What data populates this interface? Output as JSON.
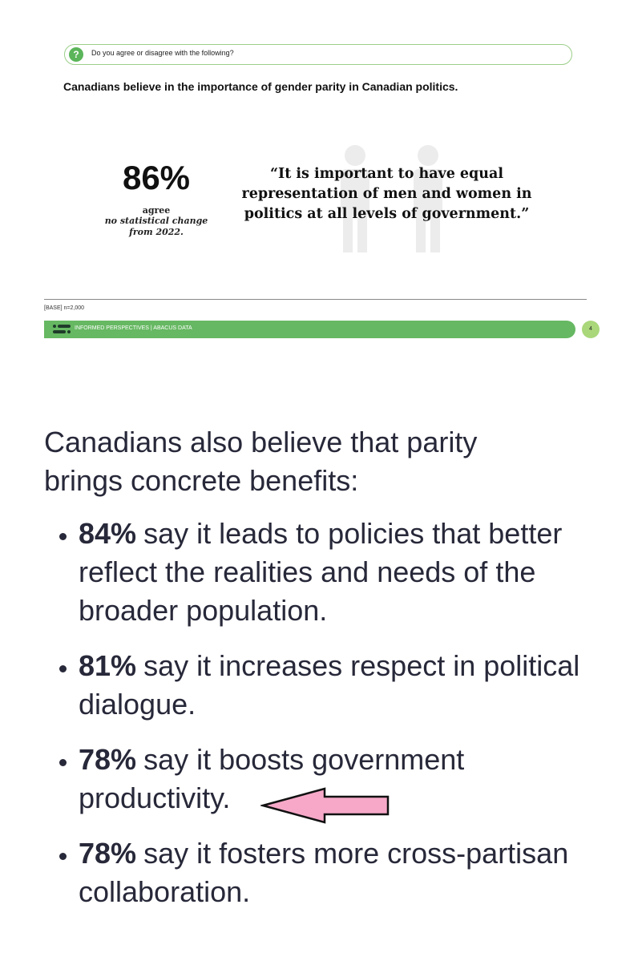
{
  "slide": {
    "question": "Do you agree or disagree with the following?",
    "title": "Canadians believe in the importance of gender parity in Canadian politics.",
    "stat": "86%",
    "stat_label": "agree",
    "stat_note": "no statistical change from 2022.",
    "quote": "“It is important to have equal representation of men and women in politics at all levels of government.”",
    "base": "[BASE] n=2,000",
    "footer": "INFORMED PERSPECTIVES | ABACUS DATA",
    "page": "4"
  },
  "post": {
    "intro": "Canadians also believe that parity brings concrete benefits:",
    "bullets": [
      {
        "bold": "84%",
        "text": "say it leads to policies that better reflect the realities and needs of the broader population."
      },
      {
        "bold": "81%",
        "text": "say it increases respect in political dialogue."
      },
      {
        "bold": "78%",
        "text": "say it boosts government productivity."
      },
      {
        "bold": "78%",
        "text": "say it fosters more cross-partisan collaboration."
      }
    ]
  }
}
